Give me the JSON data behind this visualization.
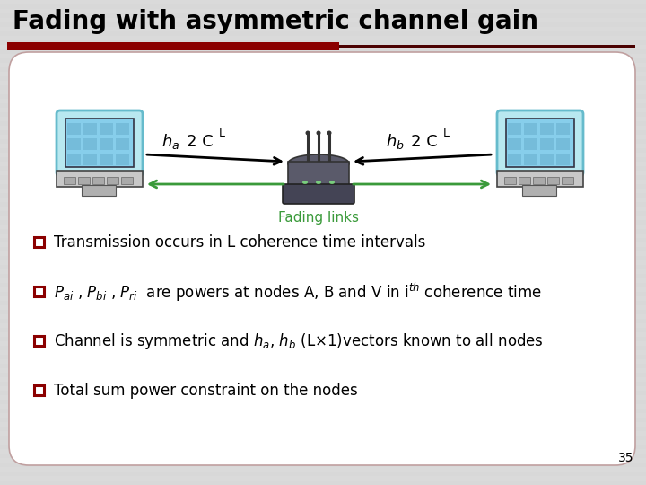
{
  "title": "Fading with asymmetric channel gain",
  "title_fontsize": 20,
  "title_color": "#000000",
  "bg_stripe_color": "#d8d8d8",
  "bg_stripe_color2": "#e0e0e0",
  "accent_color": "#8b0000",
  "accent_bar_width": 370,
  "box_bg": "#ffffff",
  "box_border": "#c0a0a0",
  "bullet_color": "#8b0000",
  "bullet1": "Transmission occurs in L coherence time intervals",
  "bullet2_full": "$P_{ai}$ , $P_{bi}$ , $P_{ri}$  are powers at nodes A, B and V in i$^{th}$ coherence time",
  "bullet3_full": "Channel is symmetric and $h_a$, $h_b$ (L$\\times$1)vectors known to all nodes",
  "bullet4": "Total sum power constraint on the nodes",
  "fading_links_label": "Fading links",
  "fading_links_color": "#3a9a3a",
  "page_number": "35",
  "arrow_black": "#000000",
  "arrow_green": "#3a9a3a",
  "laptop_screen": "#87CEEB",
  "laptop_body": "#d0d0d0",
  "laptop_border": "#555555",
  "router_body": "#555566",
  "router_top": "#666677"
}
